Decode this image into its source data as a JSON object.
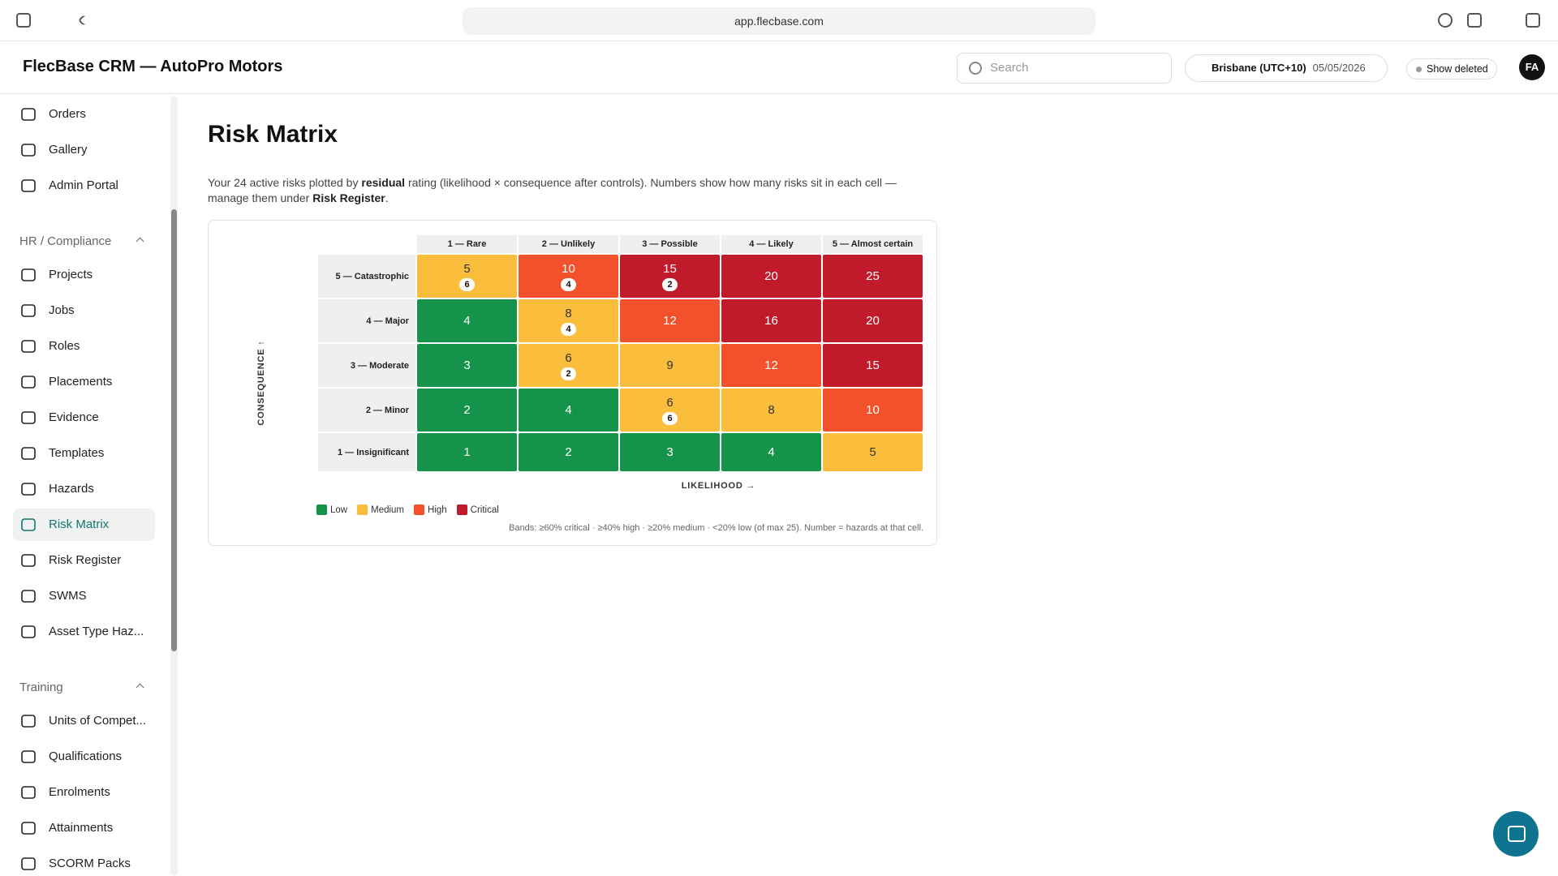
{
  "browser": {
    "url": "app.flecbase.com"
  },
  "header": {
    "title": "FlecBase CRM — AutoPro Motors",
    "search_placeholder": "Search",
    "timezone": "Brisbane (UTC+10)",
    "date": "05/05/2026",
    "show_deleted": "Show deleted",
    "avatar": "FA"
  },
  "sidebar": {
    "items": [
      "Orders",
      "Gallery",
      "Admin Portal"
    ],
    "sections": [
      {
        "title": "HR / Compliance",
        "items": [
          "Projects",
          "Jobs",
          "Roles",
          "Placements",
          "Evidence",
          "Templates",
          "Hazards",
          "Risk Matrix",
          "Risk Register",
          "SWMS",
          "Asset Type Haz..."
        ]
      },
      {
        "title": "Training",
        "items": [
          "Units of Compet...",
          "Qualifications",
          "Enrolments",
          "Attainments",
          "SCORM Packs"
        ]
      }
    ]
  },
  "page": {
    "title": "Risk Matrix",
    "description": [
      {
        "text": "Your 24 active risks plotted by "
      },
      {
        "text": "residual",
        "bold": true
      },
      {
        "text": " rating (likelihood × consequence after controls). Numbers show how many risks sit in each cell — manage them under "
      },
      {
        "text": "Risk Register",
        "bold": true
      },
      {
        "text": "."
      }
    ]
  },
  "matrix": {
    "x_axis_label": "LIKELIHOOD →",
    "y_axis_label": "CONSEQUENCE ↑",
    "columns": [
      "1 — Rare",
      "2 — Unlikely",
      "3 — Possible",
      "4 — Likely",
      "5 — Almost certain"
    ],
    "rows": [
      {
        "label": "5 — Catastrophic",
        "cells": [
          {
            "score": "5",
            "count": "6",
            "color": "#fbbd3c"
          },
          {
            "score": "10",
            "count": "4",
            "color": "#f2512b"
          },
          {
            "score": "15",
            "count": "2",
            "color": "#c01a2b"
          },
          {
            "score": "20",
            "color": "#c01a2b"
          },
          {
            "score": "25",
            "color": "#c01a2b"
          }
        ]
      },
      {
        "label": "4 — Major",
        "cells": [
          {
            "score": "4",
            "color": "#15934a"
          },
          {
            "score": "8",
            "count": "4",
            "color": "#fbbd3c"
          },
          {
            "score": "12",
            "color": "#f2512b"
          },
          {
            "score": "16",
            "color": "#c01a2b"
          },
          {
            "score": "20",
            "color": "#c01a2b"
          }
        ]
      },
      {
        "label": "3 — Moderate",
        "cells": [
          {
            "score": "3",
            "color": "#15934a"
          },
          {
            "score": "6",
            "count": "2",
            "color": "#fbbd3c"
          },
          {
            "score": "9",
            "color": "#fbbd3c"
          },
          {
            "score": "12",
            "color": "#f2512b"
          },
          {
            "score": "15",
            "color": "#c01a2b"
          }
        ]
      },
      {
        "label": "2 — Minor",
        "cells": [
          {
            "score": "2",
            "color": "#15934a"
          },
          {
            "score": "4",
            "color": "#15934a"
          },
          {
            "score": "6",
            "count": "6",
            "color": "#fbbd3c"
          },
          {
            "score": "8",
            "color": "#fbbd3c"
          },
          {
            "score": "10",
            "color": "#f2512b"
          }
        ]
      },
      {
        "label": "1 — Insignificant",
        "cells": [
          {
            "score": "1",
            "color": "#15934a"
          },
          {
            "score": "2",
            "color": "#15934a"
          },
          {
            "score": "3",
            "color": "#15934a"
          },
          {
            "score": "4",
            "color": "#15934a"
          },
          {
            "score": "5",
            "color": "#fbbd3c"
          }
        ]
      }
    ],
    "legend": [
      {
        "label": "Low",
        "color": "#15934a"
      },
      {
        "label": "Medium",
        "color": "#fbbd3c"
      },
      {
        "label": "High",
        "color": "#f2512b"
      },
      {
        "label": "Critical",
        "color": "#c01a2b"
      }
    ],
    "footnote": "Bands: ≥60% critical · ≥40% high · ≥20% medium · <20% low (of max 25). Number = hazards at that cell."
  }
}
